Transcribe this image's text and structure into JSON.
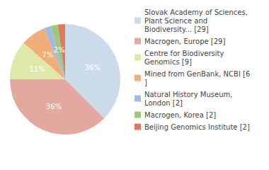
{
  "chart_data": {
    "type": "pie",
    "categories": [
      "Slovak Academy of Sciences, Plant Science and Biodiversity... [29]",
      "Macrogen, Europe [29]",
      "Centre for Biodiversity Genomics [9]",
      "Mined from GenBank, NCBI [6]",
      "Natural History Museum, London [2]",
      "Macrogen, Korea [2]",
      "Beijing Genomics Institute [2]"
    ],
    "values": [
      36,
      36,
      11,
      7,
      2,
      2,
      2
    ],
    "value_labels": [
      "36%",
      "36%",
      "11%",
      "7%",
      "2%",
      "2%",
      "2%"
    ],
    "colors": [
      "#cbdbe9",
      "#e3a89f",
      "#dfe8a9",
      "#f0ae78",
      "#a3b9e0",
      "#9dc87e",
      "#e07a5f"
    ],
    "data_labels": true,
    "legend": "right"
  }
}
